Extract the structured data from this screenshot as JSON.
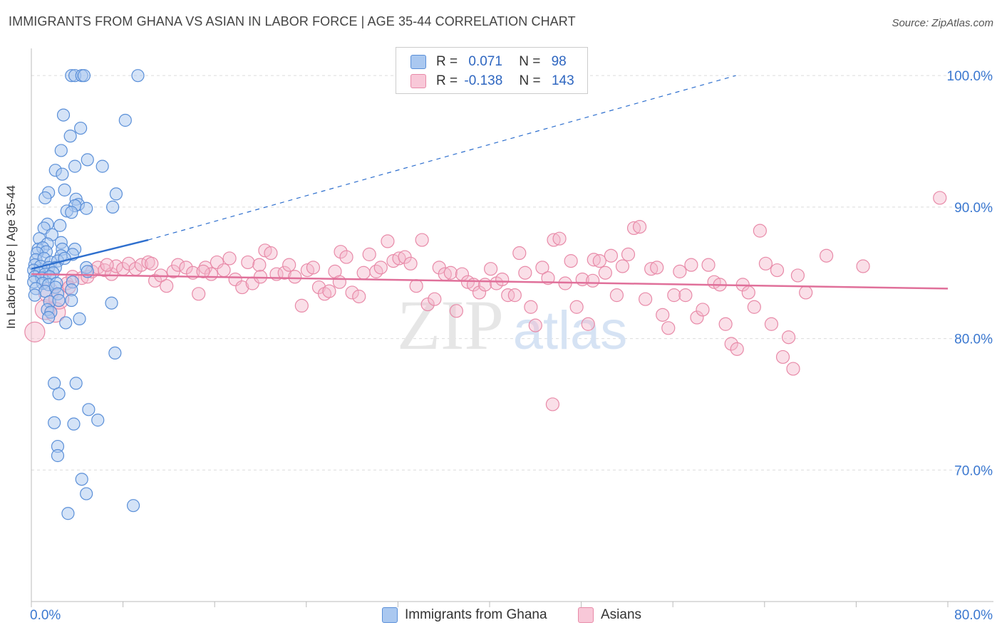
{
  "title": "IMMIGRANTS FROM GHANA VS ASIAN IN LABOR FORCE | AGE 35-44 CORRELATION CHART",
  "source": "Source: ZipAtlas.com",
  "watermark": {
    "zip": "ZIP",
    "atlas": "atlas"
  },
  "legend_top": {
    "r_label": "R =",
    "n_label": "N =",
    "rows": [
      {
        "r": "0.071",
        "n": "98"
      },
      {
        "r": "-0.138",
        "n": "143"
      }
    ]
  },
  "colors": {
    "blue_fill": "#aac8f0",
    "blue_stroke": "#5a8fd8",
    "blue_line": "#2e6fce",
    "pink_fill": "#f4b8cc",
    "pink_stroke": "#e88aa8",
    "pink_line": "#e0709a",
    "axis_text": "#3b78d0",
    "grid": "#dcdcdc"
  },
  "chart_data": {
    "type": "scatter",
    "title": "IMMIGRANTS FROM GHANA VS ASIAN IN LABOR FORCE | AGE 35-44 CORRELATION CHART",
    "xlabel": "",
    "ylabel": "In Labor Force | Age 35-44",
    "xlim": [
      0,
      80
    ],
    "ylim": [
      60,
      102.5
    ],
    "x_tick_labels": [
      "0.0%",
      "80.0%"
    ],
    "y_ticks": [
      70,
      80,
      90,
      100
    ],
    "y_tick_labels": [
      "70.0%",
      "80.0%",
      "90.0%",
      "100.0%"
    ],
    "grid": "horizontal dashed",
    "legend_position": "bottom",
    "series": [
      {
        "name": "Immigrants from Ghana",
        "r": 0.071,
        "n": 98,
        "trend": {
          "x": [
            0,
            10.2
          ],
          "y": [
            85.3,
            87.5
          ],
          "extended_to": [
            61.5,
            100
          ]
        },
        "points": [
          [
            3.5,
            100
          ],
          [
            3.8,
            100
          ],
          [
            4.4,
            100
          ],
          [
            4.6,
            100
          ],
          [
            9.3,
            100
          ],
          [
            8.2,
            96.6
          ],
          [
            2.8,
            97
          ],
          [
            4.3,
            96
          ],
          [
            3.4,
            95.4
          ],
          [
            2.6,
            94.3
          ],
          [
            4.9,
            93.6
          ],
          [
            3.8,
            93.1
          ],
          [
            6.2,
            93.1
          ],
          [
            2.1,
            92.8
          ],
          [
            2.7,
            92.5
          ],
          [
            1.5,
            91.1
          ],
          [
            2.9,
            91.3
          ],
          [
            7.4,
            91
          ],
          [
            3.9,
            90.6
          ],
          [
            1.2,
            90.7
          ],
          [
            4.1,
            90.2
          ],
          [
            3.8,
            90.1
          ],
          [
            4.8,
            89.9
          ],
          [
            7.1,
            90
          ],
          [
            3.1,
            89.7
          ],
          [
            3.5,
            89.6
          ],
          [
            1.4,
            88.7
          ],
          [
            2.5,
            88.6
          ],
          [
            1.1,
            88.4
          ],
          [
            1.8,
            87.9
          ],
          [
            0.7,
            87.6
          ],
          [
            1.4,
            87.2
          ],
          [
            2.6,
            87.3
          ],
          [
            0.6,
            86.8
          ],
          [
            1.0,
            86.9
          ],
          [
            1.3,
            86.6
          ],
          [
            2.7,
            86.8
          ],
          [
            3.8,
            86.8
          ],
          [
            0.5,
            86.5
          ],
          [
            2.6,
            86.3
          ],
          [
            3.6,
            86.4
          ],
          [
            0.4,
            86.0
          ],
          [
            1.1,
            86.1
          ],
          [
            1.7,
            85.8
          ],
          [
            2.3,
            85.9
          ],
          [
            2.9,
            86.1
          ],
          [
            0.3,
            85.6
          ],
          [
            0.8,
            85.5
          ],
          [
            1.5,
            85.4
          ],
          [
            2.1,
            85.4
          ],
          [
            0.2,
            85.2
          ],
          [
            0.7,
            85.0
          ],
          [
            1.2,
            84.9
          ],
          [
            1.9,
            85.0
          ],
          [
            4.8,
            85.4
          ],
          [
            0.3,
            84.7
          ],
          [
            0.9,
            84.6
          ],
          [
            1.6,
            84.7
          ],
          [
            4.9,
            85.1
          ],
          [
            0.2,
            84.3
          ],
          [
            1.0,
            84.2
          ],
          [
            1.5,
            84.1
          ],
          [
            2.2,
            84.2
          ],
          [
            3.6,
            84.3
          ],
          [
            0.4,
            83.8
          ],
          [
            1.2,
            83.6
          ],
          [
            2.1,
            83.9
          ],
          [
            3.5,
            83.7
          ],
          [
            0.3,
            83.3
          ],
          [
            2.3,
            83.4
          ],
          [
            1.6,
            82.8
          ],
          [
            2.4,
            82.9
          ],
          [
            3.5,
            82.9
          ],
          [
            7.0,
            82.7
          ],
          [
            1.4,
            82.2
          ],
          [
            1.7,
            82.0
          ],
          [
            1.5,
            81.6
          ],
          [
            4.2,
            81.5
          ],
          [
            3.0,
            81.2
          ],
          [
            7.3,
            78.9
          ],
          [
            2.0,
            76.6
          ],
          [
            3.9,
            76.6
          ],
          [
            2.4,
            75.8
          ],
          [
            5.0,
            74.6
          ],
          [
            2.0,
            73.6
          ],
          [
            3.7,
            73.5
          ],
          [
            5.8,
            73.8
          ],
          [
            2.3,
            71.8
          ],
          [
            2.3,
            71.1
          ],
          [
            4.4,
            69.3
          ],
          [
            4.8,
            68.2
          ],
          [
            3.2,
            66.7
          ],
          [
            8.9,
            67.3
          ]
        ]
      },
      {
        "name": "Asians",
        "r": -0.138,
        "n": 143,
        "trend": {
          "x": [
            0,
            80
          ],
          "y": [
            84.9,
            83.8
          ]
        },
        "points": [
          [
            0.3,
            80.5
          ],
          [
            1.2,
            82.2
          ],
          [
            2.1,
            82.0
          ],
          [
            1.5,
            83.5
          ],
          [
            2.4,
            83.0
          ],
          [
            3.1,
            84.2
          ],
          [
            3.6,
            84.7
          ],
          [
            4.4,
            84.6
          ],
          [
            4.9,
            84.7
          ],
          [
            5.3,
            85.1
          ],
          [
            5.8,
            85.4
          ],
          [
            6.4,
            85.2
          ],
          [
            7.0,
            84.9
          ],
          [
            7.4,
            85.5
          ],
          [
            8.0,
            85.3
          ],
          [
            8.5,
            85.7
          ],
          [
            9.1,
            85.3
          ],
          [
            9.6,
            85.6
          ],
          [
            10.2,
            85.8
          ],
          [
            10.8,
            84.4
          ],
          [
            11.3,
            84.8
          ],
          [
            11.8,
            84.0
          ],
          [
            12.4,
            85.1
          ],
          [
            12.8,
            85.6
          ],
          [
            13.5,
            85.4
          ],
          [
            14.1,
            85.0
          ],
          [
            14.6,
            83.4
          ],
          [
            15.2,
            85.4
          ],
          [
            15.7,
            84.9
          ],
          [
            16.2,
            85.8
          ],
          [
            16.8,
            85.2
          ],
          [
            17.3,
            86.1
          ],
          [
            17.8,
            84.5
          ],
          [
            18.4,
            83.9
          ],
          [
            18.9,
            85.8
          ],
          [
            19.3,
            84.2
          ],
          [
            19.9,
            85.6
          ],
          [
            20.4,
            86.7
          ],
          [
            20.9,
            86.5
          ],
          [
            21.4,
            84.9
          ],
          [
            22.1,
            85.0
          ],
          [
            22.5,
            85.6
          ],
          [
            23.0,
            84.7
          ],
          [
            23.6,
            82.5
          ],
          [
            24.1,
            85.2
          ],
          [
            24.6,
            85.4
          ],
          [
            25.1,
            83.9
          ],
          [
            25.6,
            83.4
          ],
          [
            26.0,
            83.6
          ],
          [
            26.5,
            85.1
          ],
          [
            27.0,
            86.6
          ],
          [
            27.5,
            86.2
          ],
          [
            28.0,
            83.5
          ],
          [
            28.6,
            83.2
          ],
          [
            29.0,
            85.0
          ],
          [
            29.5,
            86.4
          ],
          [
            30.1,
            85.1
          ],
          [
            30.5,
            85.4
          ],
          [
            31.1,
            87.4
          ],
          [
            31.6,
            85.9
          ],
          [
            32.1,
            86.1
          ],
          [
            32.6,
            86.2
          ],
          [
            33.1,
            85.7
          ],
          [
            33.6,
            84.0
          ],
          [
            34.1,
            87.5
          ],
          [
            34.6,
            82.6
          ],
          [
            35.2,
            83.0
          ],
          [
            35.6,
            85.4
          ],
          [
            36.1,
            84.9
          ],
          [
            36.6,
            85.0
          ],
          [
            37.1,
            82.1
          ],
          [
            37.6,
            84.9
          ],
          [
            38.1,
            84.3
          ],
          [
            38.6,
            84.1
          ],
          [
            39.1,
            83.5
          ],
          [
            39.6,
            84.1
          ],
          [
            40.1,
            85.3
          ],
          [
            40.6,
            84.2
          ],
          [
            41.1,
            84.5
          ],
          [
            41.6,
            83.3
          ],
          [
            42.2,
            83.3
          ],
          [
            42.6,
            86.5
          ],
          [
            43.1,
            85.0
          ],
          [
            43.6,
            82.4
          ],
          [
            44.0,
            81.0
          ],
          [
            44.6,
            85.4
          ],
          [
            45.1,
            84.6
          ],
          [
            45.6,
            87.5
          ],
          [
            46.1,
            87.6
          ],
          [
            46.6,
            84.2
          ],
          [
            47.1,
            85.9
          ],
          [
            47.6,
            82.4
          ],
          [
            48.1,
            84.5
          ],
          [
            48.6,
            81.1
          ],
          [
            49.1,
            86.0
          ],
          [
            49.6,
            85.9
          ],
          [
            50.1,
            85.0
          ],
          [
            50.6,
            86.3
          ],
          [
            51.1,
            83.3
          ],
          [
            51.6,
            85.5
          ],
          [
            52.1,
            86.4
          ],
          [
            52.6,
            88.4
          ],
          [
            53.1,
            88.5
          ],
          [
            53.6,
            83.0
          ],
          [
            54.1,
            85.3
          ],
          [
            54.6,
            85.4
          ],
          [
            55.1,
            81.8
          ],
          [
            55.6,
            80.8
          ],
          [
            56.1,
            83.3
          ],
          [
            56.6,
            85.1
          ],
          [
            57.1,
            83.3
          ],
          [
            57.6,
            85.6
          ],
          [
            58.1,
            81.6
          ],
          [
            58.6,
            82.2
          ],
          [
            59.1,
            85.6
          ],
          [
            59.6,
            84.3
          ],
          [
            60.1,
            84.1
          ],
          [
            60.6,
            81.1
          ],
          [
            61.1,
            79.6
          ],
          [
            61.6,
            79.2
          ],
          [
            62.1,
            84.1
          ],
          [
            62.6,
            83.5
          ],
          [
            63.1,
            82.4
          ],
          [
            63.6,
            88.2
          ],
          [
            64.1,
            85.7
          ],
          [
            64.6,
            81.1
          ],
          [
            65.1,
            85.2
          ],
          [
            65.6,
            78.6
          ],
          [
            66.1,
            80.1
          ],
          [
            66.5,
            77.7
          ],
          [
            66.9,
            84.8
          ],
          [
            67.6,
            83.5
          ],
          [
            69.4,
            86.3
          ],
          [
            72.6,
            85.5
          ],
          [
            79.3,
            90.7
          ],
          [
            45.5,
            75.0
          ],
          [
            49.0,
            84.4
          ],
          [
            26.9,
            84.3
          ],
          [
            15.0,
            85.1
          ],
          [
            6.6,
            85.6
          ],
          [
            3.3,
            83.9
          ],
          [
            10.5,
            85.7
          ],
          [
            20.0,
            84.7
          ]
        ]
      }
    ]
  }
}
